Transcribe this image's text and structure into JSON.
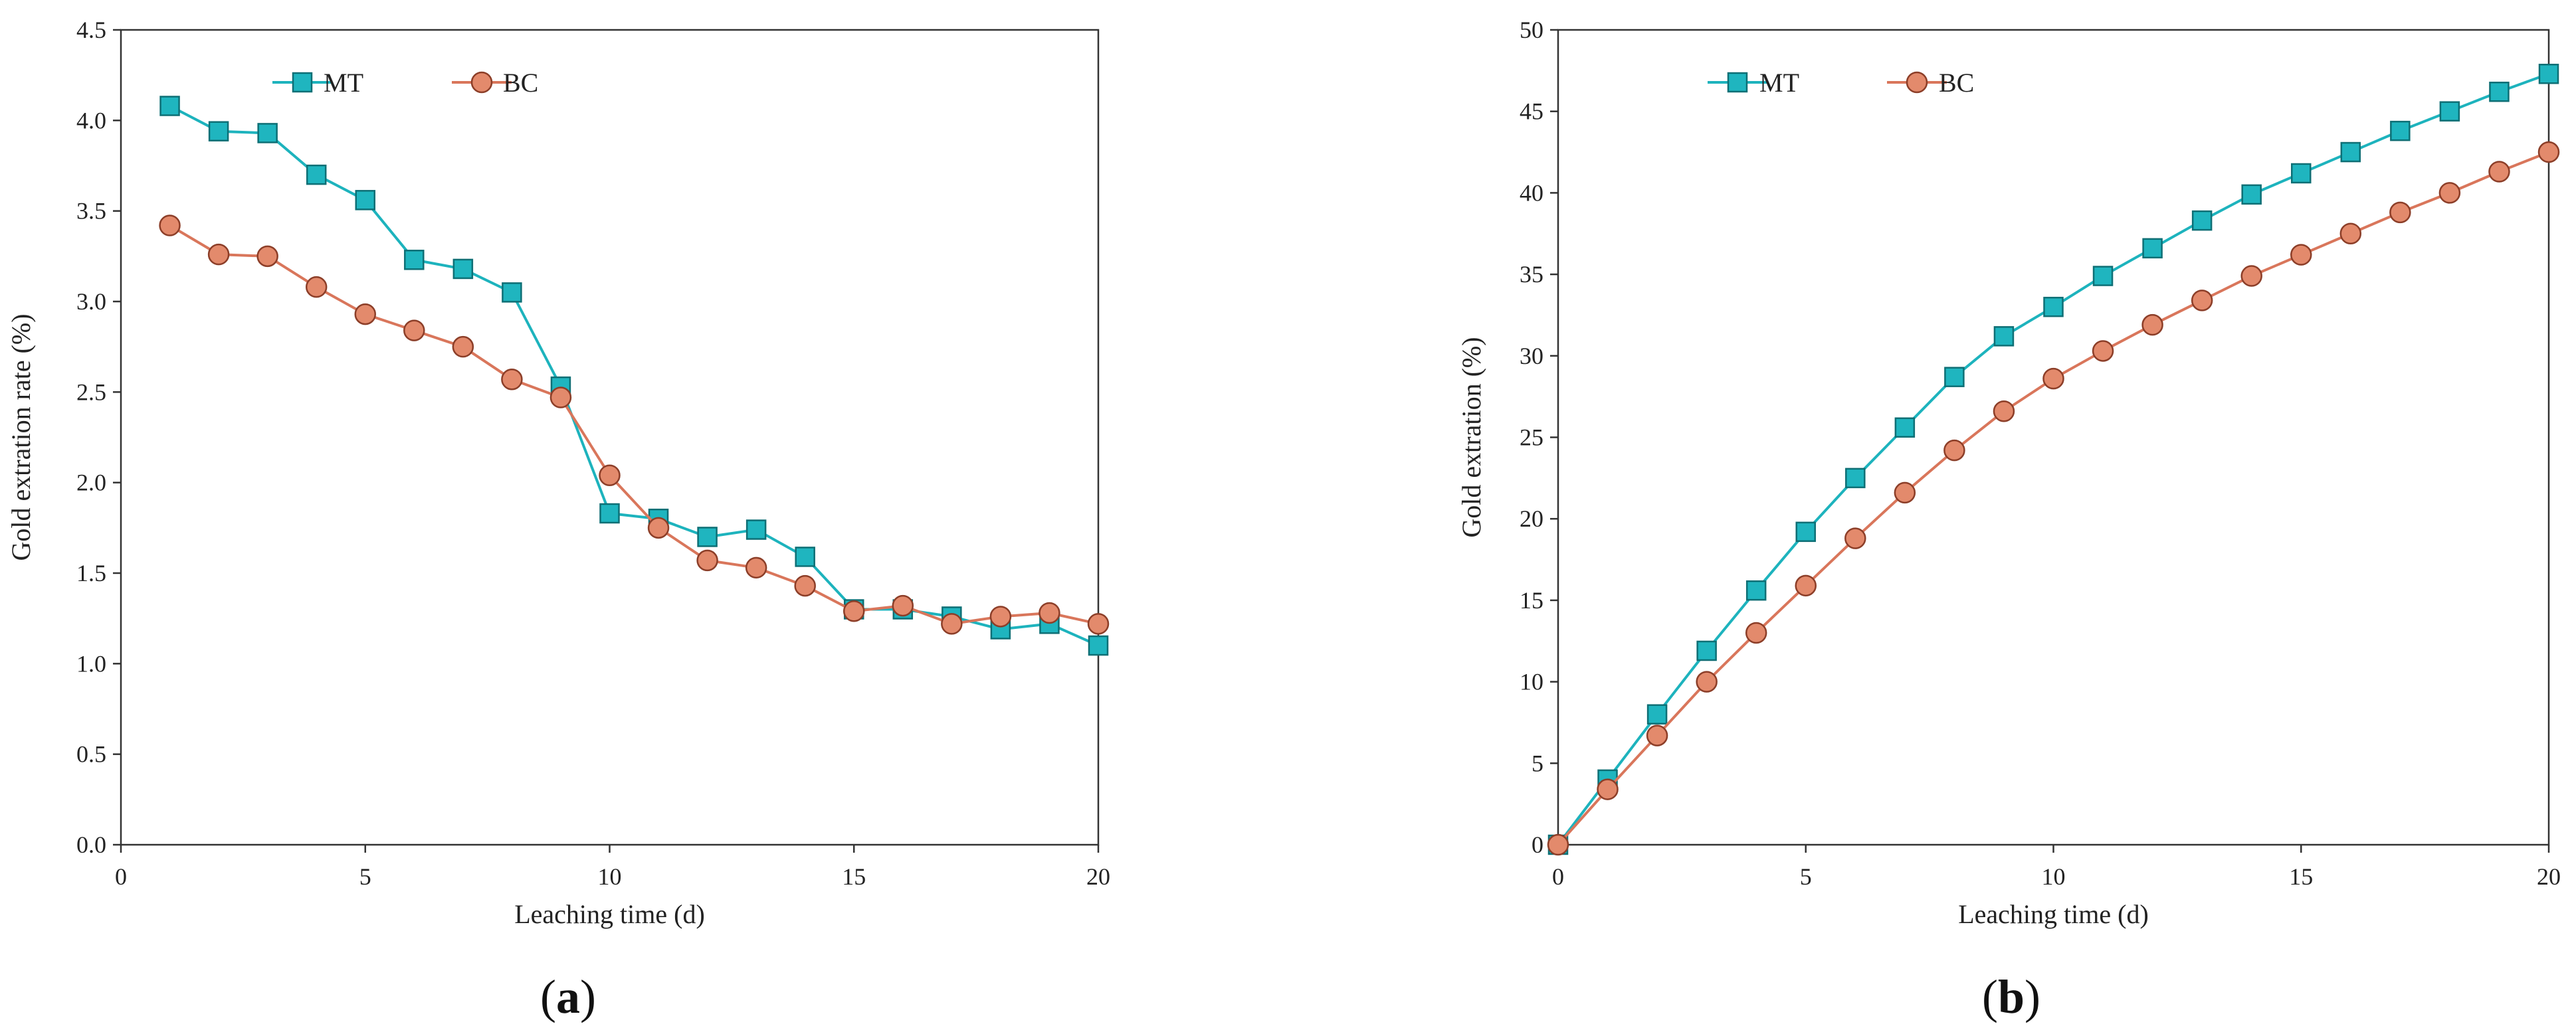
{
  "colors": {
    "MT_line": "#1DB3BD",
    "MT_fill": "#1FB5BF",
    "MT_edge": "#0E6F75",
    "BC_line": "#D9765B",
    "BC_fill": "#E38A6C",
    "BC_edge": "#8C3E28",
    "axis": "#333333"
  },
  "chart_data": [
    {
      "type": "line",
      "panel_label": "(a)",
      "panel_letter": "a",
      "xlabel": "Leaching time (d)",
      "ylabel": "Gold extration rate (%)",
      "xlim": [
        0,
        20
      ],
      "ylim": [
        0,
        4.5
      ],
      "xticks": [
        "0",
        "5",
        "10",
        "15",
        "20"
      ],
      "yticks": [
        "0.0",
        "0.5",
        "1.0",
        "1.5",
        "2.0",
        "2.5",
        "3.0",
        "3.5",
        "4.0",
        "4.5"
      ],
      "grid": false,
      "legend": "top-left",
      "x": [
        1,
        2,
        3,
        4,
        5,
        6,
        7,
        8,
        9,
        10,
        11,
        12,
        13,
        14,
        15,
        16,
        17,
        18,
        19,
        20
      ],
      "series": [
        {
          "name": "MT",
          "marker": "square",
          "values": [
            4.08,
            3.94,
            3.93,
            3.7,
            3.56,
            3.23,
            3.18,
            3.05,
            2.53,
            1.83,
            1.8,
            1.7,
            1.74,
            1.59,
            1.3,
            1.3,
            1.26,
            1.19,
            1.22,
            1.1
          ]
        },
        {
          "name": "BC",
          "marker": "circle",
          "values": [
            3.42,
            3.26,
            3.25,
            3.08,
            2.93,
            2.84,
            2.75,
            2.57,
            2.47,
            2.04,
            1.75,
            1.57,
            1.53,
            1.43,
            1.29,
            1.32,
            1.22,
            1.26,
            1.28,
            1.22
          ]
        }
      ]
    },
    {
      "type": "line",
      "panel_label": "(b)",
      "panel_letter": "b",
      "xlabel": "Leaching time (d)",
      "ylabel": "Gold extration (%)",
      "xlim": [
        0,
        20
      ],
      "ylim": [
        0,
        50
      ],
      "xticks": [
        "0",
        "5",
        "10",
        "15",
        "20"
      ],
      "yticks": [
        "0",
        "5",
        "10",
        "15",
        "20",
        "25",
        "30",
        "35",
        "40",
        "45",
        "50"
      ],
      "grid": false,
      "legend": "top-left",
      "x": [
        0,
        1,
        2,
        3,
        4,
        5,
        6,
        7,
        8,
        9,
        10,
        11,
        12,
        13,
        14,
        15,
        16,
        17,
        18,
        19,
        20
      ],
      "series": [
        {
          "name": "MT",
          "marker": "square",
          "values": [
            0,
            4.0,
            8.0,
            11.9,
            15.6,
            19.2,
            22.5,
            25.6,
            28.7,
            31.2,
            33.0,
            34.9,
            36.6,
            38.3,
            39.9,
            41.2,
            42.5,
            43.8,
            45.0,
            46.2,
            47.3
          ]
        },
        {
          "name": "BC",
          "marker": "circle",
          "values": [
            0,
            3.4,
            6.7,
            10.0,
            13.0,
            15.9,
            18.8,
            21.6,
            24.2,
            26.6,
            28.6,
            30.3,
            31.9,
            33.4,
            34.9,
            36.2,
            37.5,
            38.8,
            40.0,
            41.3,
            42.5
          ]
        }
      ]
    }
  ]
}
